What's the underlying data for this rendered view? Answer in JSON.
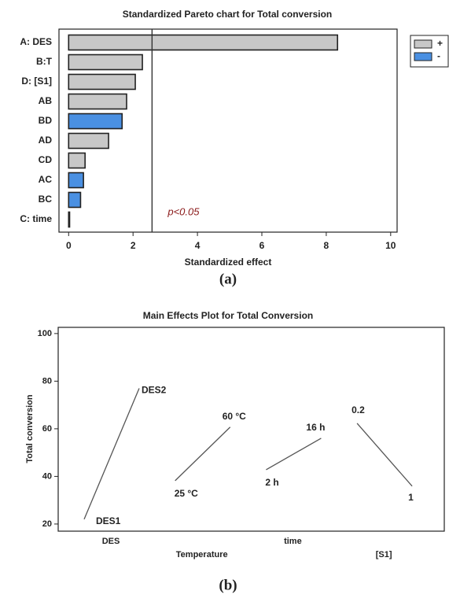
{
  "captions": [
    "(a)",
    "(b)"
  ],
  "chart_data": [
    {
      "type": "pareto",
      "title": "Standardized Pareto chart for Total conversion",
      "x_label": "Standardized effect",
      "categories": [
        "A: DES",
        "B:T",
        "D: [S1]",
        "AB",
        "BD",
        "AD",
        "CD",
        "AC",
        "BC",
        "C: time"
      ],
      "series": [
        {
          "name": "+",
          "color": "#c8c8c8",
          "values": [
            8.35,
            2.29,
            2.07,
            1.8,
            null,
            1.24,
            0.51,
            null,
            null,
            0.03
          ]
        },
        {
          "name": "-",
          "color": "#4a90e2",
          "values": [
            null,
            null,
            null,
            null,
            1.66,
            null,
            null,
            0.46,
            0.37,
            null
          ]
        }
      ],
      "xlim": [
        -0.3,
        10.2
      ],
      "xticks": [
        0,
        2,
        4,
        6,
        8,
        10
      ],
      "reference_line": {
        "value": 2.59,
        "label": "p<0.05"
      },
      "legend": "top-right"
    },
    {
      "type": "main-effects",
      "title": "Main Effects Plot for Total Conversion",
      "y_label": "Total conversion",
      "series": [
        {
          "name": "DES",
          "levels": [
            "DES1",
            "DES2"
          ],
          "values": [
            22,
            77
          ]
        },
        {
          "name": "Temperature",
          "levels": [
            "25 °C",
            "60 °C"
          ],
          "values": [
            38.2,
            60.7
          ]
        },
        {
          "name": "time",
          "levels": [
            "2 h",
            "16 h"
          ],
          "values": [
            42.8,
            56
          ]
        },
        {
          "name": "[S1]",
          "levels": [
            "0.2",
            "1"
          ],
          "values": [
            62.3,
            35.9
          ]
        }
      ],
      "color": "#555555",
      "ylim": [
        17,
        102.6
      ],
      "yticks": [
        20,
        40,
        60,
        80,
        100
      ]
    }
  ]
}
